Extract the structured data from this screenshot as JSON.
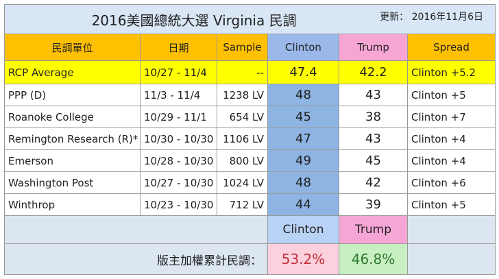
{
  "title": "2016美國總統大選  Virginia 民調",
  "update_label": "更新：",
  "update_date": "2016年11月6日",
  "headers": {
    "pollster": "民調單位",
    "date": "日期",
    "sample": "Sample",
    "clinton": "Clinton",
    "trump": "Trump",
    "spread": "Spread"
  },
  "colors": {
    "header": "#ffc000",
    "clinton": "#8db4e2",
    "trump": "#f7a6d4",
    "rcp": "#ffff00"
  },
  "chart_data": {
    "type": "table",
    "rows": [
      {
        "pollster": "RCP Average",
        "date": "10/27 - 11/4",
        "sample": "--",
        "clinton": "47.4",
        "trump": "42.2",
        "spread": "Clinton +5.2"
      },
      {
        "pollster": "PPP (D)",
        "date": "11/3 - 11/4",
        "sample": "1238 LV",
        "clinton": "48",
        "trump": "43",
        "spread": "Clinton +5"
      },
      {
        "pollster": "Roanoke College",
        "date": "10/29 - 11/1",
        "sample": "654 LV",
        "clinton": "45",
        "trump": "38",
        "spread": "Clinton +7"
      },
      {
        "pollster": "Remington Research (R)*",
        "date": "10/30 - 10/30",
        "sample": "1106 LV",
        "clinton": "47",
        "trump": "43",
        "spread": "Clinton +4"
      },
      {
        "pollster": "Emerson",
        "date": "10/28 - 10/30",
        "sample": "800 LV",
        "clinton": "49",
        "trump": "45",
        "spread": "Clinton +4"
      },
      {
        "pollster": "Washington Post",
        "date": "10/27 - 10/30",
        "sample": "1024 LV",
        "clinton": "48",
        "trump": "42",
        "spread": "Clinton +6"
      },
      {
        "pollster": "Winthrop",
        "date": "10/23 - 10/30",
        "sample": "712 LV",
        "clinton": "44",
        "trump": "39",
        "spread": "Clinton +5"
      }
    ]
  },
  "summary": {
    "clinton_label": "Clinton",
    "trump_label": "Trump",
    "total_label": "版主加權累計民調：",
    "clinton_pct": "53.2%",
    "trump_pct": "46.8%"
  }
}
